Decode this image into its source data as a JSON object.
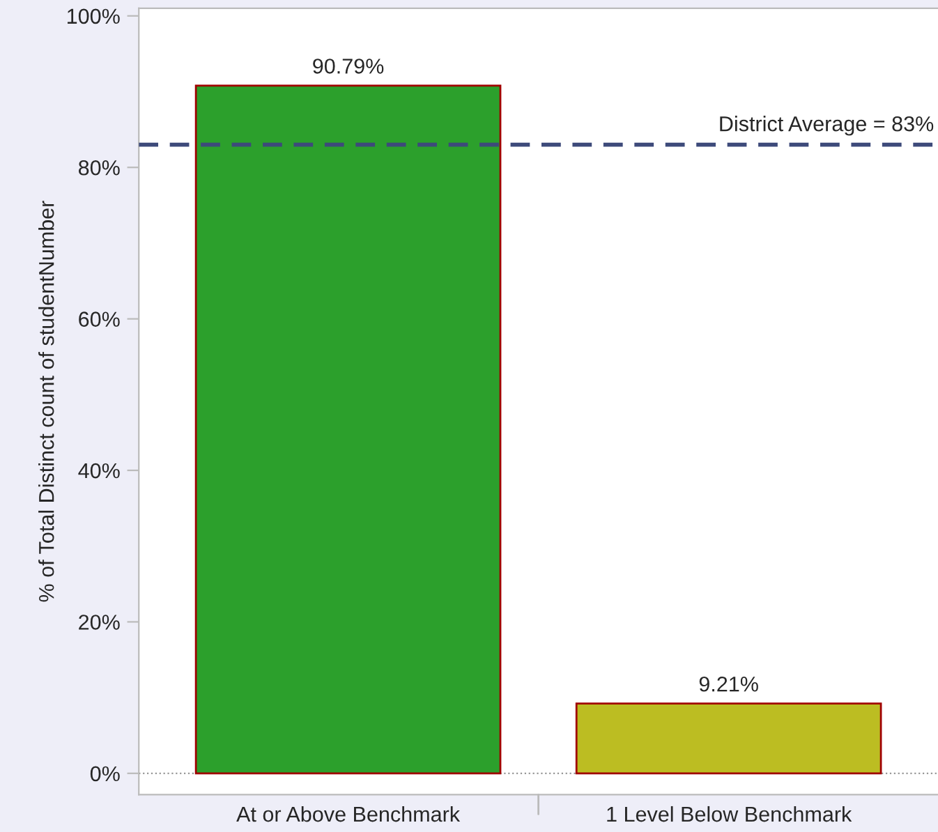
{
  "chart_data": {
    "type": "bar",
    "ylabel": "% of Total Distinct count of studentNumber",
    "categories": [
      "At or Above Benchmark",
      "1 Level Below Benchmark"
    ],
    "values": [
      90.79,
      9.21
    ],
    "colors": [
      "#2ca02c",
      "#bcbd22"
    ],
    "value_labels": [
      "90.79%",
      "9.21%"
    ],
    "ylim": [
      -2.8,
      101
    ],
    "yticks": [
      {
        "value": 0,
        "label": "0%"
      },
      {
        "value": 20,
        "label": "20%"
      },
      {
        "value": 40,
        "label": "40%"
      },
      {
        "value": 60,
        "label": "60%"
      },
      {
        "value": 80,
        "label": "80%"
      },
      {
        "value": 100,
        "label": "100%"
      }
    ],
    "ref_lines": [
      {
        "axis": "y",
        "value": 83,
        "label": "District Average = 83%",
        "color": "#3d4a7a",
        "line_style": "dashed"
      },
      {
        "axis": "y",
        "value": 0,
        "color": "#999999",
        "line_style": "dotted"
      }
    ],
    "grid": false,
    "legend": false
  }
}
